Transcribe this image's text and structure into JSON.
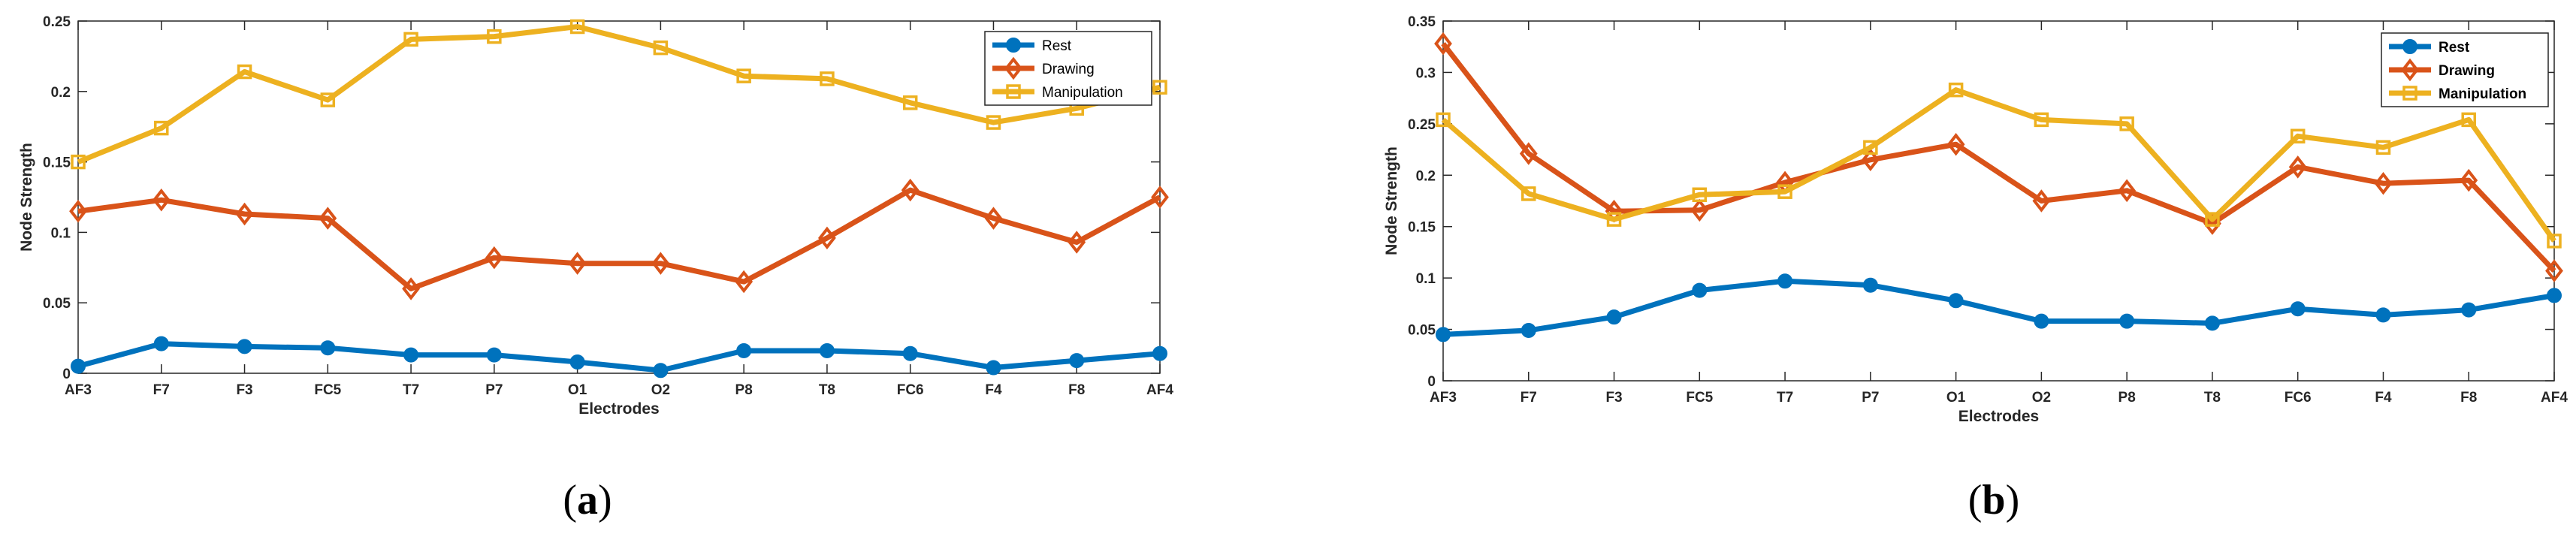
{
  "chart_data": [
    {
      "type": "line",
      "panel_label": "a",
      "xlabel": "Electrodes",
      "ylabel": "Node Strength",
      "ylim": [
        0,
        0.25
      ],
      "yticks": [
        0,
        0.05,
        0.1,
        0.15,
        0.2,
        0.25
      ],
      "ytick_labels": [
        "0",
        "0.05",
        "0.1",
        "0.15",
        "0.2",
        "0.25"
      ],
      "categories": [
        "AF3",
        "F7",
        "F3",
        "FC5",
        "T7",
        "P7",
        "O1",
        "O2",
        "P8",
        "T8",
        "FC6",
        "F4",
        "F8",
        "AF4"
      ],
      "legend_position": "top-right",
      "legend_bold": false,
      "series": [
        {
          "name": "Rest",
          "color": "#0072BD",
          "marker": "circle",
          "values": [
            0.005,
            0.021,
            0.019,
            0.018,
            0.013,
            0.013,
            0.008,
            0.002,
            0.016,
            0.016,
            0.014,
            0.004,
            0.009,
            0.014
          ]
        },
        {
          "name": "Drawing",
          "color": "#D95319",
          "marker": "diamond",
          "values": [
            0.115,
            0.123,
            0.113,
            0.11,
            0.06,
            0.082,
            0.078,
            0.078,
            0.065,
            0.096,
            0.13,
            0.11,
            0.093,
            0.125
          ]
        },
        {
          "name": "Manipulation",
          "color": "#EDB120",
          "marker": "square",
          "values": [
            0.15,
            0.174,
            0.214,
            0.194,
            0.237,
            0.239,
            0.246,
            0.231,
            0.211,
            0.209,
            0.192,
            0.178,
            0.188,
            0.203
          ]
        }
      ]
    },
    {
      "type": "line",
      "panel_label": "b",
      "xlabel": "Electrodes",
      "ylabel": "Node Strength",
      "ylim": [
        0,
        0.35
      ],
      "yticks": [
        0,
        0.05,
        0.1,
        0.15,
        0.2,
        0.25,
        0.3,
        0.35
      ],
      "ytick_labels": [
        "0",
        "0.05",
        "0.1",
        "0.15",
        "0.2",
        "0.25",
        "0.3",
        "0.35"
      ],
      "categories": [
        "AF3",
        "F7",
        "F3",
        "FC5",
        "T7",
        "P7",
        "O1",
        "O2",
        "P8",
        "T8",
        "FC6",
        "F4",
        "F8",
        "AF4"
      ],
      "legend_position": "top-right",
      "legend_bold": true,
      "series": [
        {
          "name": "Rest",
          "color": "#0072BD",
          "marker": "circle",
          "values": [
            0.045,
            0.049,
            0.062,
            0.088,
            0.097,
            0.093,
            0.078,
            0.058,
            0.058,
            0.056,
            0.07,
            0.064,
            0.069,
            0.083
          ]
        },
        {
          "name": "Drawing",
          "color": "#D95319",
          "marker": "diamond",
          "values": [
            0.328,
            0.221,
            0.165,
            0.166,
            0.193,
            0.215,
            0.23,
            0.175,
            0.185,
            0.153,
            0.208,
            0.192,
            0.195,
            0.107
          ]
        },
        {
          "name": "Manipulation",
          "color": "#EDB120",
          "marker": "square",
          "values": [
            0.254,
            0.182,
            0.157,
            0.181,
            0.184,
            0.227,
            0.283,
            0.254,
            0.25,
            0.157,
            0.238,
            0.227,
            0.254,
            0.136
          ]
        }
      ]
    }
  ]
}
